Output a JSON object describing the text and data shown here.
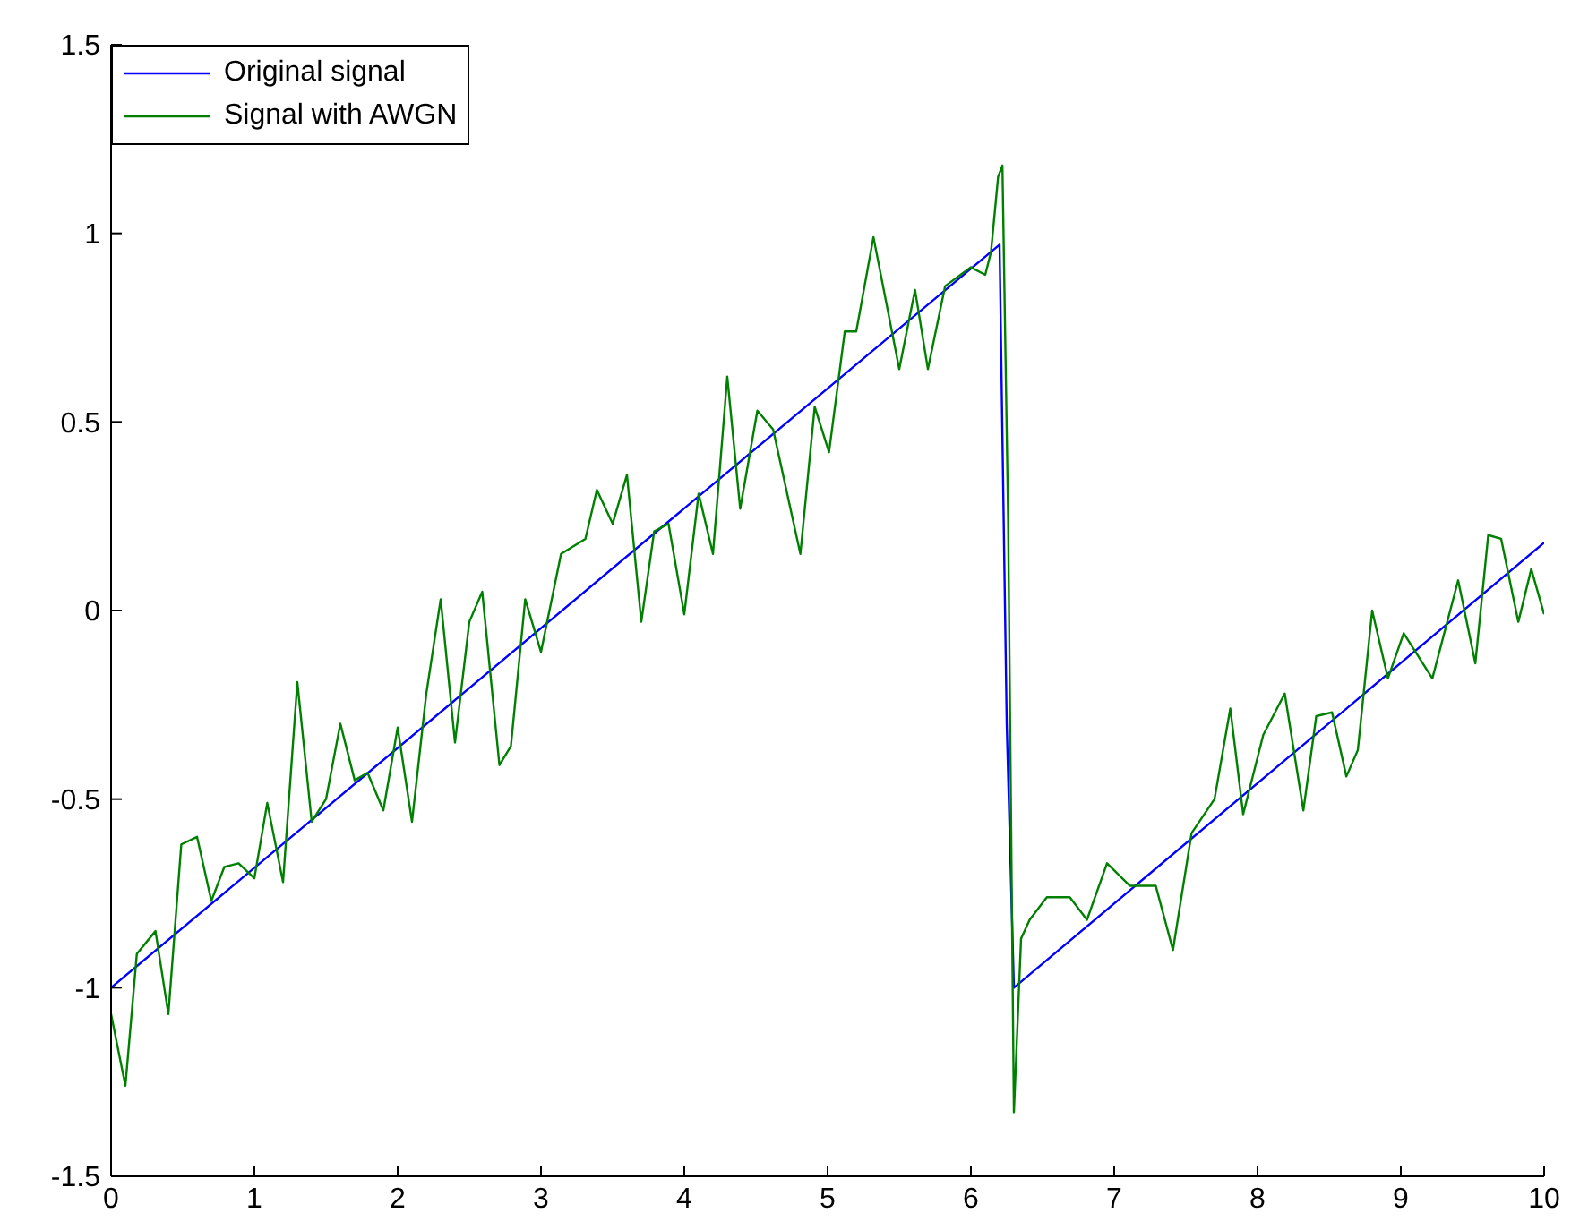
{
  "chart_data": {
    "type": "line",
    "xlim": [
      0,
      10
    ],
    "xticks": [
      0,
      1,
      2,
      3,
      4,
      5,
      6,
      7,
      8,
      9,
      10
    ],
    "ylim": [
      -1.5,
      1.5
    ],
    "yticks": [
      -1.5,
      -1,
      -0.5,
      0,
      0.5,
      1,
      1.5
    ],
    "grid": false,
    "legend": "top left",
    "marker": "none",
    "line_style": "solid",
    "series": [
      {
        "name": "Original signal",
        "color": "#0000ff",
        "x": [
          0,
          6.2,
          6.25,
          6.3,
          10
        ],
        "values": [
          -1,
          0.97,
          -0.3,
          -1,
          0.18
        ]
      },
      {
        "name": "Signal with AWGN",
        "color": "#008000",
        "x": [
          0,
          0.1,
          0.18,
          0.31,
          0.4,
          0.49,
          0.6,
          0.7,
          0.79,
          0.89,
          1.0,
          1.09,
          1.2,
          1.3,
          1.4,
          1.5,
          1.6,
          1.7,
          1.79,
          1.9,
          2.0,
          2.1,
          2.2,
          2.3,
          2.4,
          2.5,
          2.59,
          2.71,
          2.79,
          2.89,
          3.0,
          3.14,
          3.31,
          3.39,
          3.5,
          3.6,
          3.7,
          3.79,
          3.89,
          4.0,
          4.1,
          4.2,
          4.3,
          4.39,
          4.51,
          4.62,
          4.81,
          4.91,
          5.01,
          5.12,
          5.2,
          5.32,
          5.5,
          5.61,
          5.7,
          5.82,
          6.0,
          6.1,
          6.14,
          6.19,
          6.22,
          6.26,
          6.3,
          6.35,
          6.41,
          6.53,
          6.69,
          6.81,
          6.95,
          7.11,
          7.29,
          7.41,
          7.54,
          7.7,
          7.81,
          7.9,
          8.04,
          8.19,
          8.32,
          8.41,
          8.52,
          8.62,
          8.7,
          8.8,
          8.91,
          9.02,
          9.22,
          9.4,
          9.52,
          9.61,
          9.7,
          9.82,
          9.91,
          10
        ],
        "values": [
          -1.07,
          -1.26,
          -0.91,
          -0.85,
          -1.07,
          -0.62,
          -0.6,
          -0.77,
          -0.68,
          -0.67,
          -0.71,
          -0.51,
          -0.72,
          -0.19,
          -0.56,
          -0.5,
          -0.3,
          -0.45,
          -0.43,
          -0.53,
          -0.31,
          -0.56,
          -0.22,
          0.03,
          -0.35,
          -0.03,
          0.05,
          -0.41,
          -0.36,
          0.03,
          -0.11,
          0.15,
          0.19,
          0.32,
          0.23,
          0.36,
          -0.03,
          0.21,
          0.23,
          -0.01,
          0.31,
          0.15,
          0.62,
          0.27,
          0.53,
          0.48,
          0.15,
          0.54,
          0.42,
          0.74,
          0.74,
          0.99,
          0.64,
          0.85,
          0.64,
          0.86,
          0.91,
          0.89,
          0.95,
          1.15,
          1.18,
          0.24,
          -1.33,
          -0.87,
          -0.82,
          -0.76,
          -0.76,
          -0.82,
          -0.67,
          -0.73,
          -0.73,
          -0.9,
          -0.59,
          -0.5,
          -0.26,
          -0.54,
          -0.33,
          -0.22,
          -0.53,
          -0.28,
          -0.27,
          -0.44,
          -0.37,
          0.0,
          -0.18,
          -0.06,
          -0.18,
          0.08,
          -0.14,
          0.2,
          0.19,
          -0.03,
          0.11,
          -0.01
        ]
      }
    ]
  }
}
